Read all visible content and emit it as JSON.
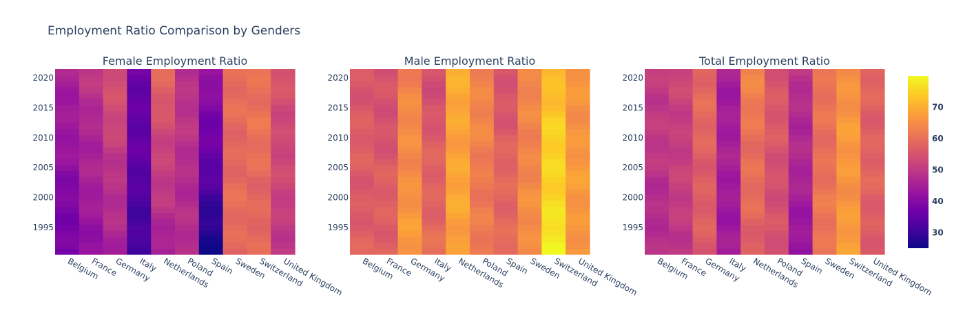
{
  "chart_data": {
    "type": "heatmap",
    "title": "Employment Ratio Comparison by Genders",
    "categories": [
      "Belgium",
      "France",
      "Germany",
      "Italy",
      "Netherlands",
      "Poland",
      "Spain",
      "Sweden",
      "Switzerland",
      "United Kingdom"
    ],
    "years": [
      1991,
      1992,
      1993,
      1994,
      1995,
      1996,
      1997,
      1998,
      1999,
      2000,
      2001,
      2002,
      2003,
      2004,
      2005,
      2006,
      2007,
      2008,
      2009,
      2010,
      2011,
      2012,
      2013,
      2014,
      2015,
      2016,
      2017,
      2018,
      2019,
      2020,
      2021
    ],
    "year_ticks": [
      1995,
      2000,
      2005,
      2010,
      2015,
      2020
    ],
    "colorscale": [
      "#0d0887",
      "#46039f",
      "#7201a8",
      "#9c179e",
      "#bd3786",
      "#d8576b",
      "#ed7953",
      "#fb9f3a",
      "#fdca26",
      "#f0f921"
    ],
    "zrange": [
      25,
      80
    ],
    "colorbar_ticks": [
      30,
      40,
      50,
      60,
      70
    ],
    "panels": [
      {
        "title": "Female Employment Ratio",
        "series": [
          {
            "name": "Belgium",
            "start": 37,
            "end": 46
          },
          {
            "name": "France",
            "start": 42,
            "end": 49
          },
          {
            "name": "Germany",
            "start": 45,
            "end": 55
          },
          {
            "name": "Italy",
            "start": 31,
            "end": 37
          },
          {
            "name": "Netherlands",
            "start": 45,
            "end": 58
          },
          {
            "name": "Poland",
            "start": 47,
            "end": 49
          },
          {
            "name": "Spain",
            "start": 26,
            "end": 43
          },
          {
            "name": "Sweden",
            "start": 59,
            "end": 59
          },
          {
            "name": "Switzerland",
            "start": 58,
            "end": 61
          },
          {
            "name": "United Kingdom",
            "start": 50,
            "end": 55
          }
        ]
      },
      {
        "title": "Male Employment Ratio",
        "series": [
          {
            "name": "Belgium",
            "start": 57,
            "end": 56
          },
          {
            "name": "France",
            "start": 58,
            "end": 54
          },
          {
            "name": "Germany",
            "start": 67,
            "end": 63
          },
          {
            "name": "Italy",
            "start": 60,
            "end": 54
          },
          {
            "name": "Netherlands",
            "start": 68,
            "end": 69
          },
          {
            "name": "Poland",
            "start": 61,
            "end": 64
          },
          {
            "name": "Spain",
            "start": 60,
            "end": 55
          },
          {
            "name": "Sweden",
            "start": 65,
            "end": 63
          },
          {
            "name": "Switzerland",
            "start": 78,
            "end": 72
          },
          {
            "name": "United Kingdom",
            "start": 67,
            "end": 66
          }
        ]
      },
      {
        "title": "Total Employment Ratio",
        "series": [
          {
            "name": "Belgium",
            "start": 47,
            "end": 51
          },
          {
            "name": "France",
            "start": 50,
            "end": 52
          },
          {
            "name": "Germany",
            "start": 56,
            "end": 59
          },
          {
            "name": "Italy",
            "start": 44,
            "end": 45
          },
          {
            "name": "Netherlands",
            "start": 57,
            "end": 63
          },
          {
            "name": "Poland",
            "start": 54,
            "end": 56
          },
          {
            "name": "Spain",
            "start": 43,
            "end": 49
          },
          {
            "name": "Sweden",
            "start": 61,
            "end": 60
          },
          {
            "name": "Switzerland",
            "start": 67,
            "end": 66
          },
          {
            "name": "United Kingdom",
            "start": 57,
            "end": 58
          }
        ]
      }
    ]
  }
}
